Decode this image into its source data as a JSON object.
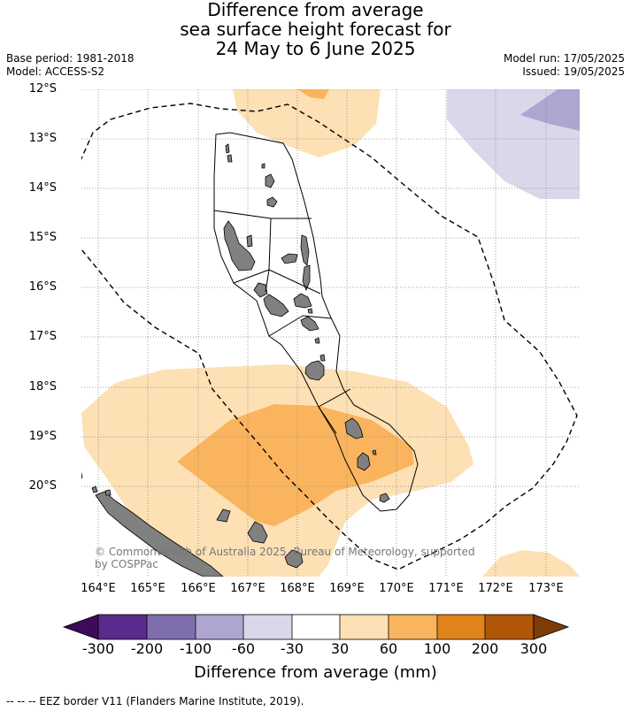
{
  "title": {
    "line1": "Difference from average",
    "line2": "sea surface height forecast for",
    "line3": "24 May to 6 June 2025"
  },
  "meta_left": {
    "base_period": "Base period: 1981-2018",
    "model": "Model: ACCESS-S2"
  },
  "meta_right": {
    "model_run": "Model run: 17/05/2025",
    "issued": "Issued: 19/05/2025"
  },
  "map": {
    "lat_labels": [
      "12°S",
      "13°S",
      "14°S",
      "15°S",
      "16°S",
      "17°S",
      "18°S",
      "19°S",
      "20°S"
    ],
    "lon_labels": [
      "164°E",
      "165°E",
      "166°E",
      "167°E",
      "168°E",
      "169°E",
      "170°E",
      "171°E",
      "172°E",
      "173°E"
    ],
    "copyright_line1": "© Commonwealth of Australia 2025, Bureau of Meteorology, supported",
    "copyright_line2": "by COSPPac",
    "colors": {
      "ocean": "#ffffff",
      "land": "#808080",
      "gridline": "#888888",
      "eez": "#000000"
    }
  },
  "colorbar": {
    "title": "Difference from average (mm)",
    "ticks": [
      "-300",
      "-200",
      "-100",
      "-60",
      "-30",
      "30",
      "60",
      "100",
      "200",
      "300"
    ],
    "colors": [
      "#3d0b59",
      "#5a2a8c",
      "#7f6eae",
      "#aea5d0",
      "#d9d8ea",
      "#ffffff",
      "#fde0b4",
      "#fbb45e",
      "#e0831a",
      "#b05608",
      "#7e3c07"
    ]
  },
  "footer": "--  --  -- EEZ border V11 (Flanders Marine Institute, 2019)."
}
